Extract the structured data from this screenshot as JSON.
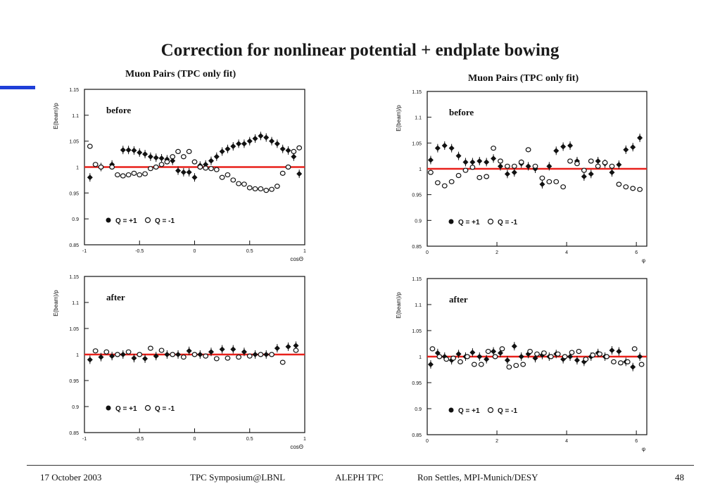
{
  "slide": {
    "title": "Correction for nonlinear potential + endplate bowing",
    "colors": {
      "accent_bar": "#1f3fd8",
      "reference_line": "#e8211b"
    }
  },
  "footer": {
    "date": "17 October 2003",
    "event": "TPC Symposium@LBNL",
    "project": "ALEPH TPC",
    "author": "Ron Settles, MPI-Munich/DESY",
    "page": "48"
  },
  "chart_data": [
    {
      "id": "costheta-before",
      "type": "scatter",
      "title": "Muon Pairs (TPC only fit)",
      "panel_label": "before",
      "ylabel": "E(beam)/p",
      "xlabel": "cosΘ",
      "xlim": [
        -1,
        1
      ],
      "ylim": [
        0.85,
        1.15
      ],
      "xticks": [
        -1,
        -0.5,
        0,
        0.5,
        1
      ],
      "xtick_labels": [
        "-1",
        "-0.5",
        "0",
        "0.5",
        "1"
      ],
      "yticks": [
        0.85,
        0.9,
        0.95,
        1,
        1.05,
        1.1,
        1.15
      ],
      "ytick_labels": [
        "0.85",
        "0.9",
        "0.95",
        "1",
        "1.05",
        "1.1",
        "1.15"
      ],
      "reference_line": 1,
      "legend": [
        "Q = +1",
        "Q = -1"
      ],
      "series": [
        {
          "name": "Q = +1",
          "marker": "filled",
          "x": [
            -0.95,
            -0.85,
            -0.75,
            -0.65,
            -0.6,
            -0.55,
            -0.5,
            -0.45,
            -0.4,
            -0.35,
            -0.3,
            -0.25,
            -0.2,
            -0.15,
            -0.1,
            -0.05,
            0,
            0.05,
            0.1,
            0.15,
            0.2,
            0.25,
            0.3,
            0.35,
            0.4,
            0.45,
            0.5,
            0.55,
            0.6,
            0.65,
            0.7,
            0.75,
            0.8,
            0.85,
            0.9,
            0.95
          ],
          "y": [
            0.98,
            1.0,
            1.005,
            1.033,
            1.033,
            1.032,
            1.028,
            1.025,
            1.02,
            1.018,
            1.017,
            1.015,
            1.012,
            0.993,
            0.99,
            0.99,
            0.98,
            1.003,
            1.005,
            1.012,
            1.02,
            1.03,
            1.035,
            1.04,
            1.045,
            1.045,
            1.05,
            1.055,
            1.06,
            1.057,
            1.05,
            1.045,
            1.035,
            1.032,
            1.02,
            0.987
          ]
        },
        {
          "name": "Q = -1",
          "marker": "open",
          "x": [
            -0.95,
            -0.9,
            -0.85,
            -0.75,
            -0.7,
            -0.65,
            -0.6,
            -0.55,
            -0.5,
            -0.45,
            -0.4,
            -0.35,
            -0.3,
            -0.25,
            -0.2,
            -0.15,
            -0.1,
            -0.05,
            0,
            0.05,
            0.1,
            0.15,
            0.2,
            0.25,
            0.3,
            0.35,
            0.4,
            0.45,
            0.5,
            0.55,
            0.6,
            0.65,
            0.7,
            0.75,
            0.8,
            0.85,
            0.9,
            0.95
          ],
          "y": [
            1.04,
            1.005,
            1.0,
            1.0,
            0.985,
            0.983,
            0.985,
            0.988,
            0.985,
            0.987,
            0.997,
            1.0,
            1.005,
            1.01,
            1.02,
            1.03,
            1.02,
            1.03,
            1.01,
            1.0,
            0.998,
            0.997,
            0.995,
            0.98,
            0.985,
            0.975,
            0.968,
            0.967,
            0.96,
            0.958,
            0.958,
            0.955,
            0.957,
            0.963,
            0.988,
            1.0,
            1.03,
            1.037
          ]
        }
      ]
    },
    {
      "id": "phi-before",
      "type": "scatter",
      "title": "Muon Pairs (TPC only fit)",
      "panel_label": "before",
      "ylabel": "E(beam)/p",
      "xlabel": "φ",
      "xlim": [
        0,
        6.3
      ],
      "ylim": [
        0.85,
        1.15
      ],
      "xticks": [
        0,
        2,
        4,
        6
      ],
      "xtick_labels": [
        "0",
        "2",
        "4",
        "6"
      ],
      "yticks": [
        0.85,
        0.9,
        0.95,
        1,
        1.05,
        1.1,
        1.15
      ],
      "ytick_labels": [
        "0.85",
        "0.9",
        "0.95",
        "1",
        "1.05",
        "1.1",
        "1.15"
      ],
      "reference_line": 1,
      "legend": [
        "Q = +1",
        "Q = -1"
      ],
      "series": [
        {
          "name": "Q = +1",
          "marker": "filled",
          "x": [
            0.1,
            0.3,
            0.5,
            0.7,
            0.9,
            1.1,
            1.3,
            1.5,
            1.7,
            1.9,
            2.1,
            2.3,
            2.5,
            2.7,
            2.9,
            3.1,
            3.3,
            3.5,
            3.7,
            3.9,
            4.1,
            4.3,
            4.5,
            4.7,
            4.9,
            5.1,
            5.3,
            5.5,
            5.7,
            5.9,
            6.1
          ],
          "y": [
            1.017,
            1.04,
            1.045,
            1.04,
            1.025,
            1.013,
            1.013,
            1.015,
            1.013,
            1.02,
            1.005,
            0.99,
            0.993,
            1.01,
            1.005,
            1.0,
            0.97,
            1.005,
            1.035,
            1.043,
            1.045,
            1.015,
            0.985,
            0.99,
            1.015,
            1.01,
            0.993,
            1.008,
            1.037,
            1.042,
            1.06
          ]
        },
        {
          "name": "Q = -1",
          "marker": "open",
          "x": [
            0.1,
            0.3,
            0.5,
            0.7,
            0.9,
            1.1,
            1.3,
            1.5,
            1.7,
            1.9,
            2.1,
            2.3,
            2.5,
            2.7,
            2.9,
            3.1,
            3.3,
            3.5,
            3.7,
            3.9,
            4.1,
            4.3,
            4.5,
            4.7,
            4.9,
            5.1,
            5.3,
            5.5,
            5.7,
            5.9,
            6.1
          ],
          "y": [
            0.993,
            0.973,
            0.967,
            0.975,
            0.987,
            0.997,
            1.003,
            0.983,
            0.985,
            1.04,
            1.015,
            1.005,
            1.005,
            1.013,
            1.037,
            1.005,
            0.982,
            0.975,
            0.975,
            0.965,
            1.015,
            1.01,
            0.997,
            1.015,
            1.005,
            1.012,
            1.005,
            0.97,
            0.965,
            0.962,
            0.96
          ]
        }
      ]
    },
    {
      "id": "costheta-after",
      "type": "scatter",
      "panel_label": "after",
      "ylabel": "E(beam)/p",
      "xlabel": "cosΘ",
      "xlim": [
        -1,
        1
      ],
      "ylim": [
        0.85,
        1.15
      ],
      "xticks": [
        -1,
        -0.5,
        0,
        0.5,
        1
      ],
      "xtick_labels": [
        "-1",
        "-0.5",
        "0",
        "0.5",
        "1"
      ],
      "yticks": [
        0.85,
        0.9,
        0.95,
        1,
        1.05,
        1.1,
        1.15
      ],
      "ytick_labels": [
        "0.85",
        "0.9",
        "0.95",
        "1",
        "1.05",
        "1.1",
        "1.15"
      ],
      "reference_line": 1,
      "legend": [
        "Q = +1",
        "Q = -1"
      ],
      "series": [
        {
          "name": "Q = +1",
          "marker": "filled",
          "x": [
            -0.95,
            -0.85,
            -0.75,
            -0.65,
            -0.55,
            -0.45,
            -0.35,
            -0.25,
            -0.15,
            -0.05,
            0.05,
            0.15,
            0.25,
            0.35,
            0.45,
            0.55,
            0.65,
            0.75,
            0.85,
            0.92
          ],
          "y": [
            0.99,
            0.995,
            0.997,
            1.0,
            0.993,
            0.992,
            0.997,
            1.0,
            1.0,
            1.007,
            1.0,
            1.005,
            1.01,
            1.01,
            1.005,
            1.0,
            1.0,
            1.012,
            1.015,
            1.017
          ]
        },
        {
          "name": "Q = -1",
          "marker": "open",
          "x": [
            -0.9,
            -0.8,
            -0.7,
            -0.6,
            -0.5,
            -0.4,
            -0.3,
            -0.2,
            -0.1,
            0,
            0.1,
            0.2,
            0.3,
            0.4,
            0.5,
            0.6,
            0.7,
            0.8,
            0.92
          ],
          "y": [
            1.007,
            1.005,
            1.0,
            1.005,
            1.0,
            1.012,
            1.008,
            1.0,
            0.995,
            1.0,
            0.997,
            0.992,
            0.993,
            0.995,
            0.997,
            1.0,
            1.0,
            0.985,
            1.008
          ]
        }
      ]
    },
    {
      "id": "phi-after",
      "type": "scatter",
      "panel_label": "after",
      "ylabel": "E(beam)/p",
      "xlabel": "φ",
      "xlim": [
        0,
        6.3
      ],
      "ylim": [
        0.85,
        1.15
      ],
      "xticks": [
        0,
        2,
        4,
        6
      ],
      "xtick_labels": [
        "0",
        "2",
        "4",
        "6"
      ],
      "yticks": [
        0.85,
        0.9,
        0.95,
        1,
        1.05,
        1.1,
        1.15
      ],
      "ytick_labels": [
        "0.85",
        "0.9",
        "0.95",
        "1",
        "1.05",
        "1.1",
        "1.15"
      ],
      "reference_line": 1,
      "legend": [
        "Q = +1",
        "Q = -1"
      ],
      "series": [
        {
          "name": "Q = +1",
          "marker": "filled",
          "x": [
            0.1,
            0.3,
            0.5,
            0.7,
            0.9,
            1.1,
            1.3,
            1.5,
            1.7,
            1.9,
            2.1,
            2.3,
            2.5,
            2.7,
            2.9,
            3.1,
            3.3,
            3.5,
            3.7,
            3.9,
            4.1,
            4.3,
            4.5,
            4.7,
            4.9,
            5.1,
            5.3,
            5.5,
            5.7,
            5.9,
            6.1
          ],
          "y": [
            0.985,
            1.007,
            1.0,
            0.993,
            1.005,
            1.0,
            1.008,
            1.0,
            0.995,
            1.01,
            1.007,
            0.993,
            1.02,
            1.0,
            1.005,
            0.997,
            1.003,
            1.0,
            1.005,
            0.995,
            1.0,
            0.993,
            0.99,
            1.0,
            1.007,
            1.0,
            1.012,
            1.01,
            0.99,
            0.98,
            1.0
          ]
        },
        {
          "name": "Q = -1",
          "marker": "open",
          "x": [
            0.15,
            0.35,
            0.55,
            0.75,
            0.95,
            1.15,
            1.35,
            1.55,
            1.75,
            1.95,
            2.15,
            2.35,
            2.55,
            2.75,
            2.95,
            3.15,
            3.35,
            3.55,
            3.75,
            3.95,
            4.15,
            4.35,
            4.55,
            4.75,
            4.95,
            5.15,
            5.35,
            5.55,
            5.75,
            5.95,
            6.15
          ],
          "y": [
            1.015,
            1.0,
            0.995,
            0.997,
            0.99,
            1.0,
            0.985,
            0.985,
            1.01,
            1.0,
            1.015,
            0.98,
            0.983,
            0.985,
            1.01,
            1.005,
            1.007,
            1.0,
            1.005,
            1.0,
            1.008,
            1.01,
            0.995,
            1.003,
            1.005,
            1.0,
            0.99,
            0.988,
            0.99,
            1.015,
            0.985
          ]
        }
      ]
    }
  ]
}
